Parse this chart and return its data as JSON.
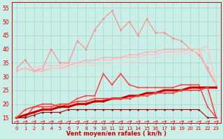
{
  "bg_color": "#cceee8",
  "grid_color": "#aaddcc",
  "xlabel": "Vent moyen/en rafales ( kn/h )",
  "xlim": [
    -0.5,
    23.5
  ],
  "ylim": [
    13,
    57
  ],
  "yticks": [
    15,
    20,
    25,
    30,
    35,
    40,
    45,
    50,
    55
  ],
  "xticks": [
    0,
    1,
    2,
    3,
    4,
    5,
    6,
    7,
    8,
    9,
    10,
    11,
    12,
    13,
    14,
    15,
    16,
    17,
    18,
    19,
    20,
    21,
    22,
    23
  ],
  "series": [
    {
      "name": "rafales_max",
      "color": "#ff8888",
      "linewidth": 0.8,
      "marker": "o",
      "markersize": 1.8,
      "x": [
        0,
        1,
        2,
        3,
        4,
        5,
        6,
        7,
        8,
        9,
        10,
        11,
        12,
        13,
        14,
        15,
        16,
        17,
        18,
        19,
        20,
        21,
        22,
        23
      ],
      "y": [
        33,
        36,
        32,
        33,
        40,
        35,
        35,
        43,
        40,
        47,
        51,
        54,
        47,
        50,
        45,
        51,
        46,
        46,
        44,
        43,
        40,
        38,
        33,
        27
      ]
    },
    {
      "name": "rafales_moy_upper",
      "color": "#ffaaaa",
      "linewidth": 0.8,
      "marker": "o",
      "markersize": 1.5,
      "x": [
        0,
        1,
        2,
        3,
        4,
        5,
        6,
        7,
        8,
        9,
        10,
        11,
        12,
        13,
        14,
        15,
        16,
        17,
        18,
        19,
        20,
        21,
        22,
        23
      ],
      "y": [
        32,
        33,
        32,
        32,
        33,
        33,
        34,
        35,
        36,
        36,
        37,
        37,
        37,
        38,
        38,
        39,
        39,
        40,
        40,
        40,
        40,
        40,
        32,
        27
      ]
    },
    {
      "name": "trend_line1",
      "color": "#ffbbbb",
      "linewidth": 0.8,
      "marker": null,
      "markersize": 0,
      "x": [
        0,
        1,
        2,
        3,
        4,
        5,
        6,
        7,
        8,
        9,
        10,
        11,
        12,
        13,
        14,
        15,
        16,
        17,
        18,
        19,
        20,
        21,
        22,
        23
      ],
      "y": [
        33,
        33,
        33,
        34,
        34,
        34,
        35,
        35,
        35,
        36,
        36,
        36,
        37,
        37,
        37,
        38,
        38,
        39,
        39,
        39,
        40,
        40,
        41,
        27
      ]
    },
    {
      "name": "trend_line2",
      "color": "#ffcccc",
      "linewidth": 0.8,
      "marker": null,
      "markersize": 0,
      "x": [
        0,
        1,
        2,
        3,
        4,
        5,
        6,
        7,
        8,
        9,
        10,
        11,
        12,
        13,
        14,
        15,
        16,
        17,
        18,
        19,
        20,
        21,
        22,
        23
      ],
      "y": [
        33,
        33,
        33,
        33,
        33,
        33,
        33,
        34,
        34,
        34,
        34,
        35,
        35,
        35,
        36,
        36,
        37,
        37,
        38,
        38,
        39,
        39,
        40,
        27
      ]
    },
    {
      "name": "rafale_spot_red",
      "color": "#ff3333",
      "linewidth": 1.0,
      "marker": "+",
      "markersize": 3.5,
      "x": [
        0,
        1,
        2,
        3,
        4,
        5,
        6,
        7,
        8,
        9,
        10,
        11,
        12,
        13,
        14,
        15,
        16,
        17,
        18,
        19,
        20,
        21,
        22,
        23
      ],
      "y": [
        15,
        15,
        19,
        20,
        20,
        19,
        20,
        22,
        23,
        23,
        31,
        27,
        31,
        27,
        26,
        26,
        26,
        26,
        26,
        27,
        27,
        27,
        19,
        15
      ]
    },
    {
      "name": "vent_moy_main",
      "color": "#cc0000",
      "linewidth": 2.2,
      "marker": "o",
      "markersize": 1.5,
      "x": [
        0,
        1,
        2,
        3,
        4,
        5,
        6,
        7,
        8,
        9,
        10,
        11,
        12,
        13,
        14,
        15,
        16,
        17,
        18,
        19,
        20,
        21,
        22,
        23
      ],
      "y": [
        15,
        16,
        17,
        18,
        18,
        19,
        19,
        20,
        20,
        21,
        21,
        22,
        22,
        23,
        23,
        24,
        24,
        25,
        25,
        25,
        26,
        26,
        26,
        26
      ]
    },
    {
      "name": "vent_lower",
      "color": "#990000",
      "linewidth": 0.8,
      "marker": "o",
      "markersize": 1.5,
      "x": [
        0,
        1,
        2,
        3,
        4,
        5,
        6,
        7,
        8,
        9,
        10,
        11,
        12,
        13,
        14,
        15,
        16,
        17,
        18,
        19,
        20,
        21,
        22,
        23
      ],
      "y": [
        15,
        15,
        16,
        17,
        17,
        17,
        18,
        18,
        18,
        18,
        18,
        18,
        18,
        18,
        18,
        18,
        18,
        18,
        18,
        18,
        18,
        18,
        15,
        15
      ]
    },
    {
      "name": "vent_mid",
      "color": "#ff4444",
      "linewidth": 1.2,
      "marker": "o",
      "markersize": 1.5,
      "x": [
        0,
        1,
        2,
        3,
        4,
        5,
        6,
        7,
        8,
        9,
        10,
        11,
        12,
        13,
        14,
        15,
        16,
        17,
        18,
        19,
        20,
        21,
        22,
        23
      ],
      "y": [
        15,
        18,
        19,
        19,
        19,
        20,
        20,
        21,
        21,
        22,
        22,
        22,
        22,
        22,
        23,
        23,
        24,
        24,
        24,
        25,
        25,
        25,
        26,
        15
      ]
    }
  ],
  "axis_fontsize": 6,
  "tick_fontsize": 5
}
